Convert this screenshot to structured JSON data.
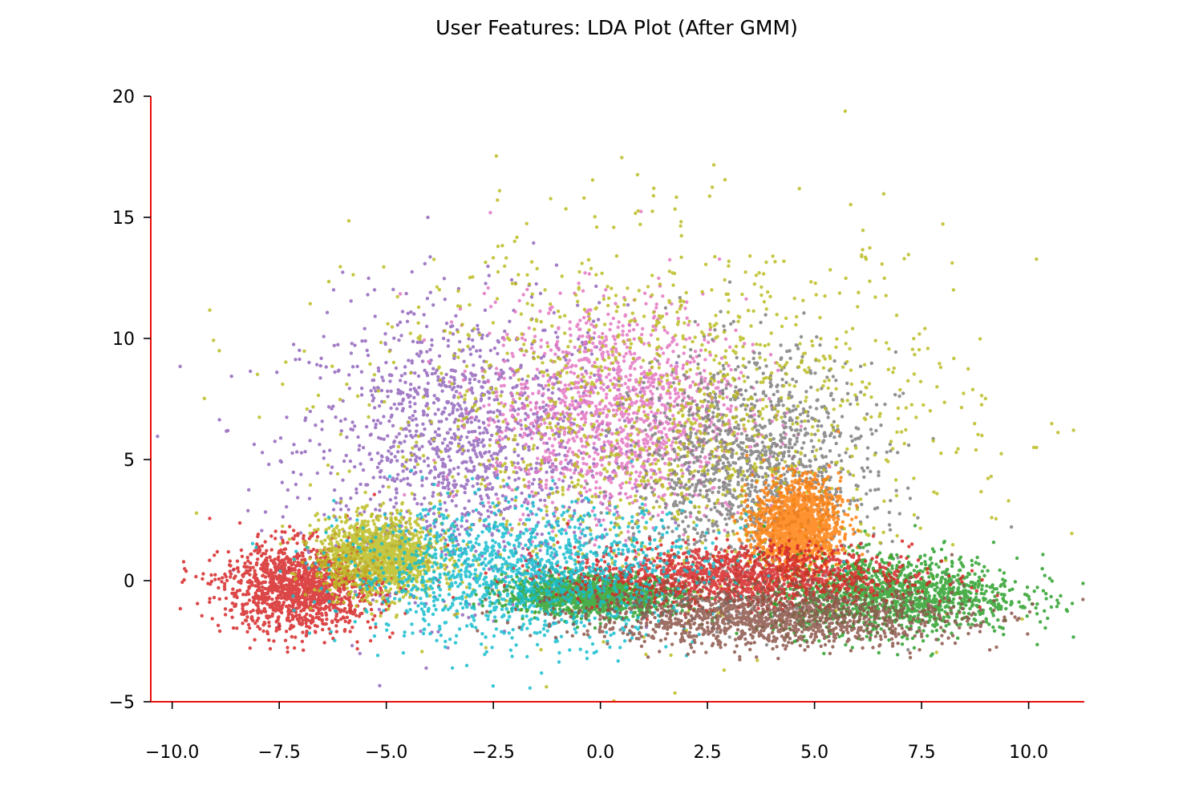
{
  "chart_data": {
    "type": "scatter",
    "title": "User Features: LDA Plot (After GMM)",
    "xlabel": "",
    "ylabel": "",
    "xlim": [
      -10.5,
      11.3
    ],
    "ylim": [
      -5,
      20
    ],
    "x_ticks": [
      -10.0,
      -7.5,
      -5.0,
      -2.5,
      0.0,
      2.5,
      5.0,
      7.5,
      10.0
    ],
    "x_tick_labels": [
      "−10.0",
      "−7.5",
      "−5.0",
      "−2.5",
      "0.0",
      "2.5",
      "5.0",
      "7.5",
      "10.0"
    ],
    "y_ticks": [
      -5,
      0,
      5,
      10,
      15,
      20
    ],
    "y_tick_labels": [
      "−5",
      "0",
      "5",
      "10",
      "15",
      "20"
    ],
    "axis_color": "#e8100e",
    "grid": false,
    "legend": "none",
    "clusters": [
      {
        "color": "#9467bd",
        "center": [
          -3.2,
          5.5
        ],
        "spread": [
          1.9,
          2.9
        ]
      },
      {
        "color": "#e377c2",
        "center": [
          0.4,
          7.0
        ],
        "spread": [
          1.5,
          2.3
        ]
      },
      {
        "color": "#7f7f7f",
        "center": [
          3.6,
          4.4
        ],
        "spread": [
          1.4,
          2.4
        ]
      },
      {
        "color": "#bcbd22",
        "center": [
          1.5,
          6.5
        ],
        "spread": [
          3.5,
          3.9
        ]
      },
      {
        "color": "#ff7f0e",
        "center": [
          4.6,
          2.3
        ],
        "spread": [
          0.5,
          0.9
        ]
      },
      {
        "color": "#2ca02c",
        "center": [
          6.8,
          -0.6
        ],
        "spread": [
          1.5,
          0.8
        ]
      },
      {
        "color": "#2ca02c",
        "center": [
          -0.2,
          -0.6
        ],
        "spread": [
          1.0,
          0.4
        ]
      },
      {
        "color": "#d62728",
        "center": [
          -7.0,
          -0.3
        ],
        "spread": [
          0.9,
          0.9
        ]
      },
      {
        "color": "#d62728",
        "center": [
          3.2,
          0.2
        ],
        "spread": [
          2.0,
          0.6
        ]
      },
      {
        "color": "#bcbd22",
        "center": [
          -5.2,
          1.0
        ],
        "spread": [
          0.7,
          0.8
        ]
      },
      {
        "color": "#17becf",
        "center": [
          -1.8,
          0.3
        ],
        "spread": [
          2.1,
          1.4
        ]
      },
      {
        "color": "#8c564b",
        "center": [
          4.0,
          -1.5
        ],
        "spread": [
          2.2,
          0.6
        ]
      }
    ]
  }
}
